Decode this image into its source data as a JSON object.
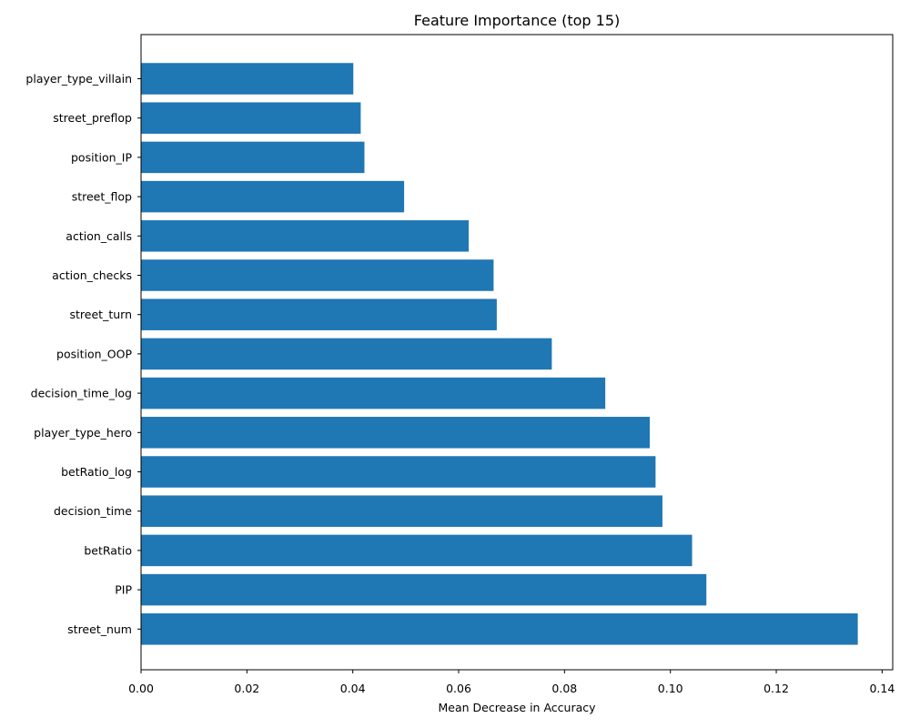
{
  "chart_data": {
    "type": "bar",
    "orientation": "horizontal",
    "title": "Feature Importance (top 15)",
    "xlabel": "Mean Decrease in Accuracy",
    "ylabel": "",
    "categories": [
      "player_type_villain",
      "street_preflop",
      "position_IP",
      "street_flop",
      "action_calls",
      "action_checks",
      "street_turn",
      "position_OOP",
      "decision_time_log",
      "player_type_hero",
      "betRatio_log",
      "decision_time",
      "betRatio",
      "PIP",
      "street_num"
    ],
    "values": [
      0.0401,
      0.0415,
      0.0422,
      0.0497,
      0.0619,
      0.0666,
      0.0672,
      0.0776,
      0.0877,
      0.0961,
      0.0972,
      0.0985,
      0.1041,
      0.1068,
      0.1354
    ],
    "xlim": [
      0,
      0.142
    ],
    "xticks": [
      "0.00",
      "0.02",
      "0.04",
      "0.06",
      "0.08",
      "0.10",
      "0.12",
      "0.14"
    ],
    "bar_color": "#1f77b4",
    "grid": false,
    "legend": "none"
  }
}
